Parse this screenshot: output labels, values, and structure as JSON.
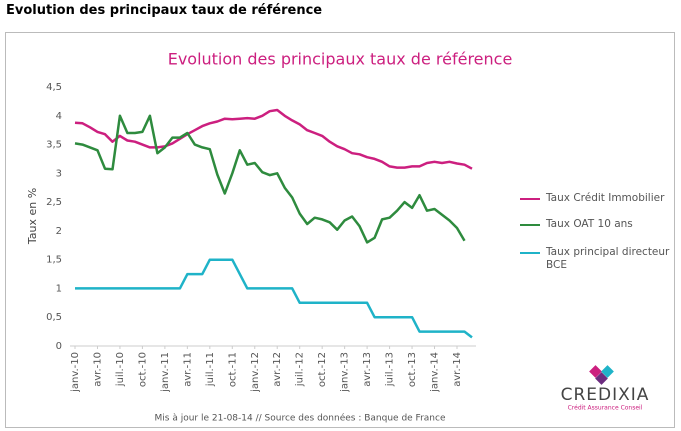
{
  "heading": "Evolution des principaux taux de référence",
  "chart_data": {
    "type": "line",
    "title": "Evolution des principaux taux de référence",
    "y_label": "Taux en %",
    "footer": "Mis à jour le 21-08-14 // Source des données : Banque de France",
    "logo": {
      "name": "CREDIXIA",
      "tagline": "Crédit Assurance Conseil"
    },
    "categories": [
      "janv.-10",
      null,
      null,
      "avr.-10",
      null,
      null,
      "juil.-10",
      null,
      null,
      "oct.-10",
      null,
      null,
      "janv.-11",
      null,
      null,
      "avr.-11",
      null,
      null,
      "juil.-11",
      null,
      null,
      "oct.-11",
      null,
      null,
      "janv.-12",
      null,
      null,
      "avr.-12",
      null,
      null,
      "juil.-12",
      null,
      null,
      "oct.-12",
      null,
      null,
      "janv.-13",
      null,
      null,
      "avr.-13",
      null,
      null,
      "juil.-13",
      null,
      null,
      "oct.-13",
      null,
      null,
      "janv.-14",
      null,
      null,
      "avr.-14",
      null,
      null
    ],
    "ylim": [
      0,
      4.5
    ],
    "yticks": [
      0,
      {
        "value": 0.5,
        "label": "0,5"
      },
      1,
      {
        "value": 1.5,
        "label": "1,5"
      },
      2,
      {
        "value": 2.5,
        "label": "2,5"
      },
      3,
      {
        "value": 3.5,
        "label": "3,5"
      },
      4,
      {
        "value": 4.5,
        "label": "4,5"
      }
    ],
    "grid": false,
    "legend": "right",
    "series": [
      {
        "name": "Taux Crédit Immobilier",
        "color": "#cc1f7f",
        "values": [
          3.88,
          3.87,
          3.8,
          3.72,
          3.68,
          3.55,
          3.65,
          3.57,
          3.55,
          3.5,
          3.45,
          3.45,
          3.47,
          3.52,
          3.6,
          3.68,
          3.75,
          3.82,
          3.87,
          3.9,
          3.95,
          3.94,
          3.95,
          3.96,
          3.95,
          4.0,
          4.08,
          4.1,
          4.0,
          3.92,
          3.85,
          3.75,
          3.7,
          3.65,
          3.55,
          3.47,
          3.42,
          3.35,
          3.33,
          3.28,
          3.25,
          3.2,
          3.12,
          3.1,
          3.1,
          3.12,
          3.12,
          3.18,
          3.2,
          3.18,
          3.2,
          3.17,
          3.15,
          3.08
        ]
      },
      {
        "name": "Taux OAT 10 ans",
        "color": "#2e8b3e",
        "values": [
          3.52,
          3.5,
          3.45,
          3.4,
          3.08,
          3.07,
          4.0,
          3.7,
          3.7,
          3.72,
          4.0,
          3.35,
          3.45,
          3.62,
          3.62,
          3.7,
          3.5,
          3.45,
          3.42,
          2.98,
          2.65,
          3.0,
          3.4,
          3.15,
          3.18,
          3.02,
          2.97,
          3.0,
          2.75,
          2.58,
          2.3,
          2.12,
          2.23,
          2.2,
          2.15,
          2.02,
          2.18,
          2.25,
          2.08,
          1.8,
          1.88,
          2.2,
          2.23,
          2.35,
          2.5,
          2.4,
          2.62,
          2.35,
          2.38,
          2.28,
          2.18,
          2.05,
          1.83,
          null
        ]
      },
      {
        "name": "Taux principal directeur BCE",
        "color": "#1fb3c8",
        "values": [
          1,
          1,
          1,
          1,
          1,
          1,
          1,
          1,
          1,
          1,
          1,
          1,
          1,
          1,
          1,
          1.25,
          1.25,
          1.25,
          1.5,
          1.5,
          1.5,
          1.5,
          1.25,
          1,
          1,
          1,
          1,
          1,
          1,
          1,
          0.75,
          0.75,
          0.75,
          0.75,
          0.75,
          0.75,
          0.75,
          0.75,
          0.75,
          0.75,
          0.5,
          0.5,
          0.5,
          0.5,
          0.5,
          0.5,
          0.25,
          0.25,
          0.25,
          0.25,
          0.25,
          0.25,
          0.25,
          0.15
        ]
      }
    ]
  }
}
